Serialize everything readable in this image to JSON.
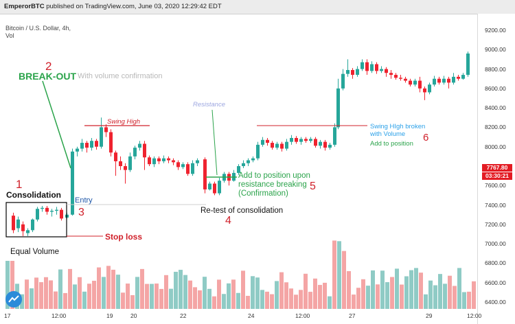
{
  "header": {
    "author": "EmperorBTC",
    "published": "published on TradingView.com, June 03, 2020 12:29:42 EDT"
  },
  "chart": {
    "symbol": "Bitcoin / U.S. Dollar, 4h,",
    "volume_label": "Vol",
    "price_axis": [
      "9200.00",
      "9000.00",
      "8800.00",
      "8600.00",
      "8400.00",
      "8200.00",
      "8000.00",
      "7800.00",
      "7600.00",
      "7400.00",
      "7200.00",
      "7000.00",
      "6800.00",
      "6600.00",
      "6400.00"
    ],
    "last_price": "7767.80",
    "countdown": "03:30:21",
    "time_axis": [
      "17",
      "12:00",
      "19",
      "20",
      "22",
      "24",
      "12:00",
      "27",
      "29",
      "12:00"
    ]
  },
  "annotations": {
    "n1": "1",
    "consolidation": "Consolidation",
    "n2": "2",
    "breakout": "BREAK-OUT",
    "breakout_note": "With volume confirmation",
    "entry": "Entry",
    "n3": "3",
    "stop_loss": "Stop loss",
    "equal_volume": "Equal Volume",
    "swing_high": "Swing High",
    "resistance": "Resistance",
    "add_position_line1": "Add to position upon",
    "add_position_line2": "resistance breaking",
    "add_position_line3": "(Confirmation)",
    "n5": "5",
    "retest": "Re-test of consolidation",
    "n4": "4",
    "swing_broken_line1": "Swing HIgh broken",
    "swing_broken_line2": "with Volume",
    "add_to_position": "Add to position",
    "n6": "6"
  },
  "colors": {
    "up": "#26a69a",
    "down": "#ef232f",
    "volume_up": "#8fcbc5",
    "volume_down": "#f4a5a5",
    "annotation_red": "#d0202a",
    "annotation_green": "#2aa34a",
    "annotation_blue": "#1f57a8"
  }
}
